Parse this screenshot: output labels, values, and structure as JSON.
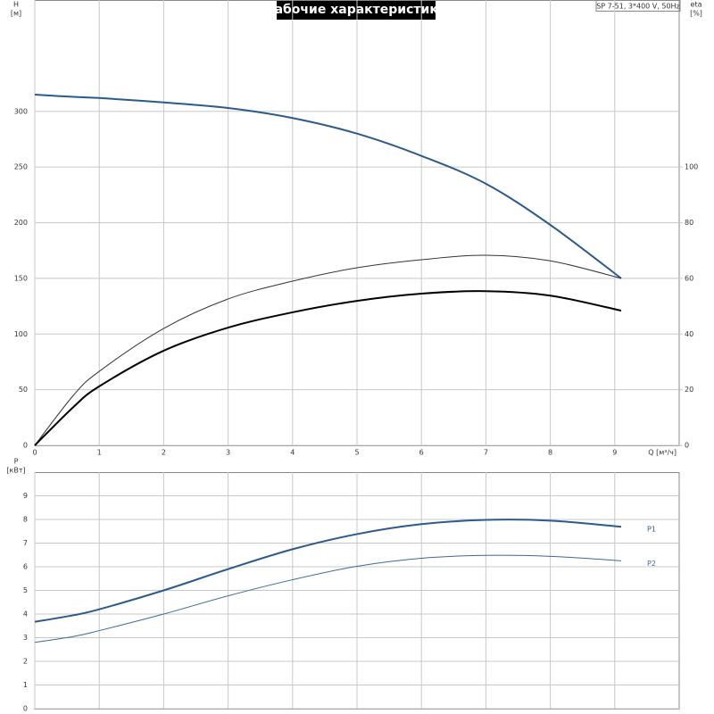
{
  "chart_data": [
    {
      "type": "line",
      "title": "Рабочие характеристики",
      "subtitle": "SP 7-51, 3*400 V, 50Hz",
      "x_label": "Q [м³/ч]",
      "y_label": "H",
      "y_unit": "[м]",
      "y2_label": "eta",
      "y2_unit": "[%]",
      "x": [
        0,
        0.6,
        1,
        2,
        3,
        4,
        5,
        6,
        7,
        8,
        9.1
      ],
      "xlim": [
        0,
        10
      ],
      "xticks": [
        0,
        1,
        2,
        3,
        4,
        5,
        6,
        7,
        8,
        9
      ],
      "ylim": [
        0,
        400
      ],
      "yticks": [
        0,
        50,
        100,
        150,
        200,
        250,
        300
      ],
      "y2lim": [
        0,
        160
      ],
      "y2ticks": [
        0,
        20,
        40,
        60,
        80,
        100
      ],
      "grid": true,
      "series": [
        {
          "color": "#2a5b8c",
          "line_width": 2,
          "values": [
            315,
            313,
            312,
            308,
            303,
            294,
            280,
            260,
            235,
            198,
            150
          ]
        },
        {
          "color": "#333333",
          "line_width": 1,
          "axis": "y2",
          "values": [
            0,
            18,
            26.6,
            42,
            52.6,
            59,
            63.8,
            66.7,
            68.3,
            66.3,
            60
          ]
        },
        {
          "color": "#000000",
          "line_width": 2,
          "axis": "y2",
          "values": [
            0,
            13.8,
            21.2,
            34,
            42.3,
            47.8,
            51.9,
            54.5,
            55.4,
            53.8,
            48.4
          ]
        }
      ]
    },
    {
      "type": "line",
      "y_label": "P",
      "y_unit": "[кВт]",
      "x": [
        0,
        0.6,
        1,
        2,
        3,
        4,
        5,
        6,
        7,
        8,
        9.1
      ],
      "xlim": [
        0,
        10
      ],
      "ylim": [
        0,
        10
      ],
      "yticks": [
        0,
        1,
        2,
        3,
        4,
        5,
        6,
        7,
        8,
        9
      ],
      "grid": true,
      "series": [
        {
          "name": "P1",
          "color": "#2a5b8c",
          "line_width": 2,
          "values": [
            3.67,
            3.95,
            4.2,
            5.0,
            5.9,
            6.74,
            7.38,
            7.8,
            7.98,
            7.95,
            7.69
          ]
        },
        {
          "name": "P2",
          "color": "#3a6a98",
          "line_width": 1,
          "values": [
            2.8,
            3.05,
            3.3,
            4.0,
            4.77,
            5.45,
            6.02,
            6.36,
            6.48,
            6.44,
            6.25
          ]
        }
      ]
    }
  ]
}
